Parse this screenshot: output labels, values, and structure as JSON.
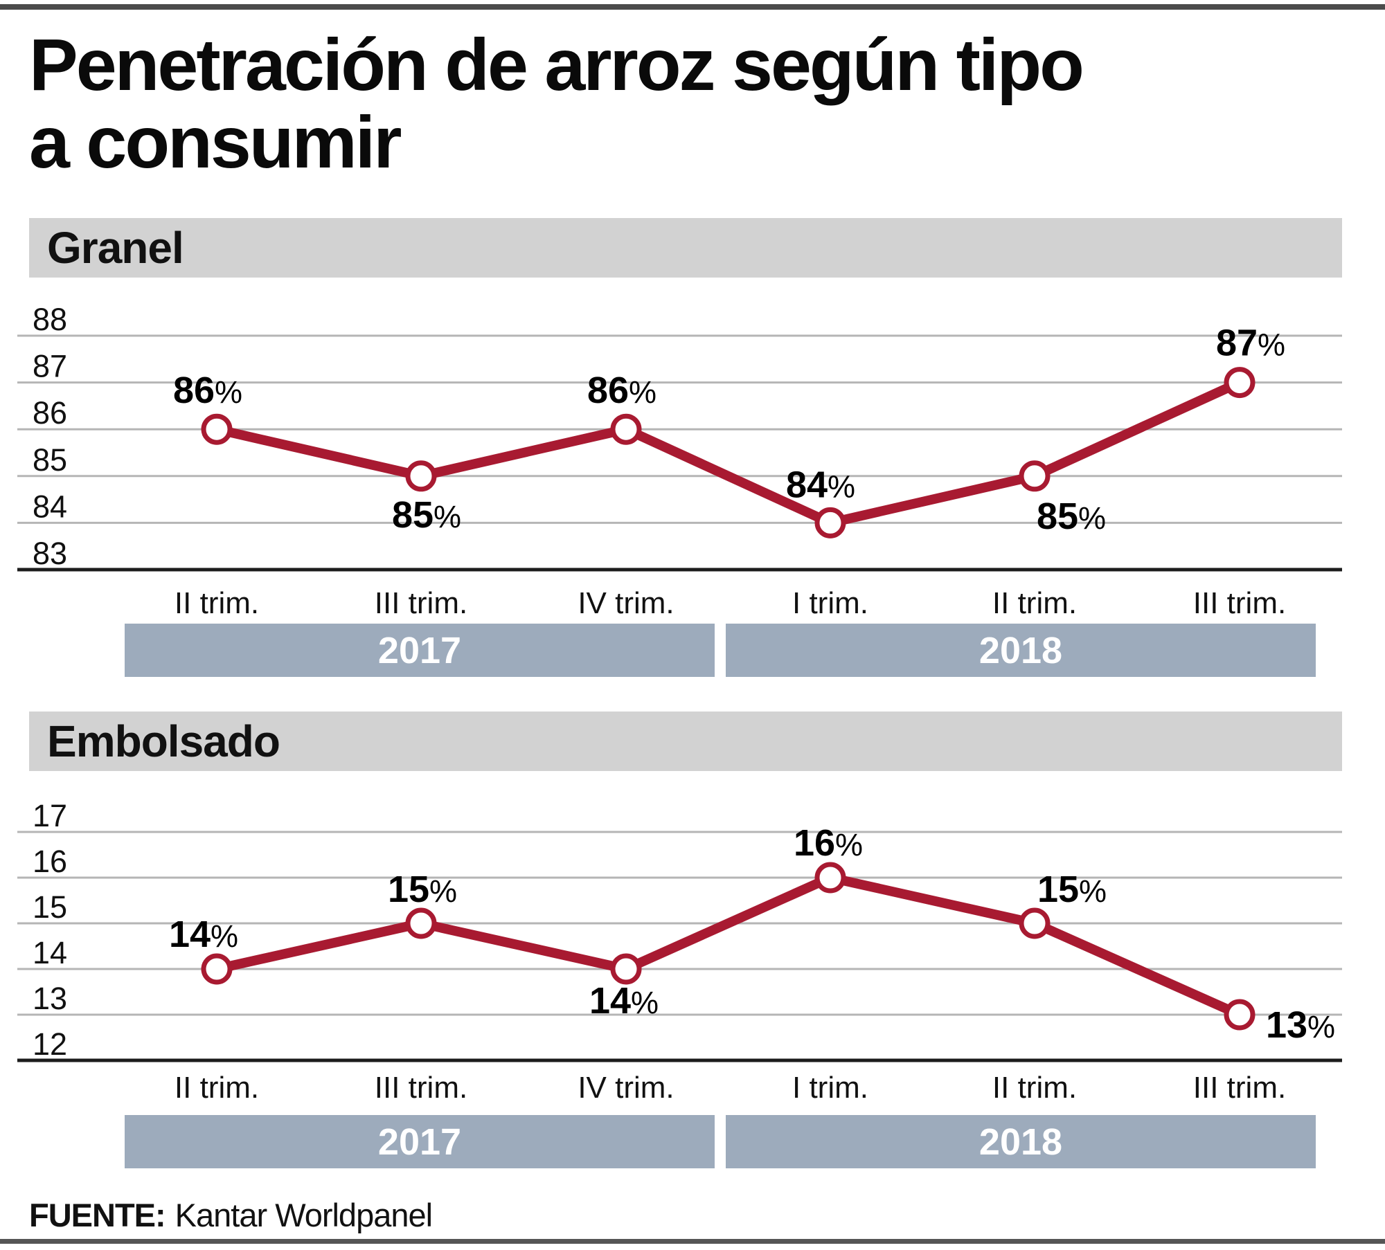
{
  "title": {
    "line1": "Penetración de arroz según tipo",
    "line2": "a consumir"
  },
  "source": {
    "prefix": "FUENTE:",
    "text": "Kantar Worldpanel"
  },
  "colors": {
    "line": "#a81a31",
    "marker_fill": "#ffffff",
    "gridline": "#b5b5b5",
    "axis": "#1c1c1c",
    "section_band": "#d2d2d2",
    "year_band": "#9dabbc",
    "year_text": "#ffffff",
    "text": "#111111"
  },
  "chart_data": [
    {
      "type": "line",
      "title": "Granel",
      "categories": [
        "II trim.",
        "III trim.",
        "IV trim.",
        "I trim.",
        "II trim.",
        "III trim."
      ],
      "values": [
        86,
        85,
        86,
        84,
        85,
        87
      ],
      "point_labels": [
        "86%",
        "85%",
        "86%",
        "84%",
        "85%",
        "87%"
      ],
      "unit": "%",
      "yticks": [
        88,
        87,
        86,
        85,
        84,
        83
      ],
      "ylim": [
        83,
        88
      ],
      "grid": "horizontal only",
      "legend": "none",
      "year_groups": [
        {
          "label": "2017",
          "quarters": 3
        },
        {
          "label": "2018",
          "quarters": 3
        }
      ]
    },
    {
      "type": "line",
      "title": "Embolsado",
      "categories": [
        "II trim.",
        "III trim.",
        "IV trim.",
        "I trim.",
        "II trim.",
        "III trim."
      ],
      "values": [
        14,
        15,
        14,
        16,
        15,
        13
      ],
      "point_labels": [
        "14%",
        "15%",
        "14%",
        "16%",
        "15%",
        "13%"
      ],
      "unit": "%",
      "yticks": [
        17,
        16,
        15,
        14,
        13,
        12
      ],
      "ylim": [
        12,
        17
      ],
      "grid": "horizontal only",
      "legend": "none",
      "year_groups": [
        {
          "label": "2017",
          "quarters": 3
        },
        {
          "label": "2018",
          "quarters": 3
        }
      ]
    }
  ]
}
